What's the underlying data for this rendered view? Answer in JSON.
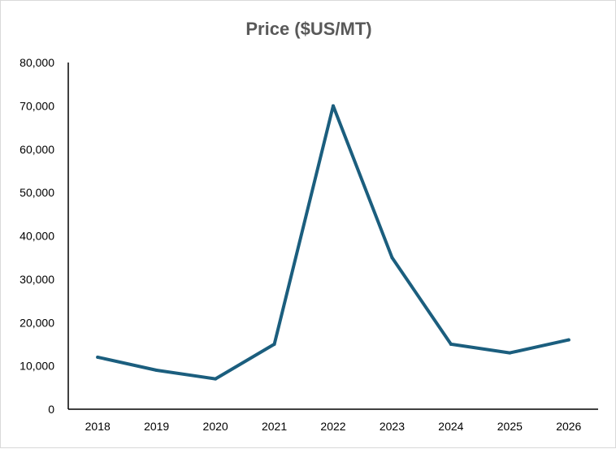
{
  "chart_data": {
    "type": "line",
    "title": "Price ($US/MT)",
    "xlabel": "",
    "ylabel": "",
    "categories": [
      "2018",
      "2019",
      "2020",
      "2021",
      "2022",
      "2023",
      "2024",
      "2025",
      "2026"
    ],
    "series": [
      {
        "values": [
          12000,
          9000,
          7000,
          15000,
          70000,
          35000,
          15000,
          13000,
          16000
        ]
      }
    ],
    "ylim": [
      0,
      80000
    ],
    "yticks": [
      0,
      10000,
      20000,
      30000,
      40000,
      50000,
      60000,
      70000,
      80000
    ],
    "ytick_labels": [
      "0",
      "10,000",
      "20,000",
      "30,000",
      "40,000",
      "50,000",
      "60,000",
      "70,000",
      "80,000"
    ],
    "grid": false,
    "legend": "none",
    "line_color": "#1b5e7e"
  }
}
